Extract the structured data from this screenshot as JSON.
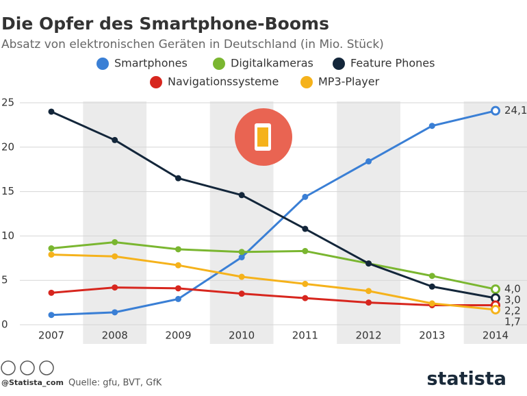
{
  "chart_data": {
    "type": "line",
    "title": "Die Opfer des Smartphone-Booms",
    "subtitle": "Absatz von elektronischen Geräten in Deutschland (in Mio. Stück)",
    "categories": [
      "2007",
      "2008",
      "2009",
      "2010",
      "2011",
      "2012",
      "2013",
      "2014"
    ],
    "series": [
      {
        "name": "Smartphones",
        "color": "#3a7fd5",
        "values": [
          1.1,
          1.4,
          2.9,
          7.6,
          14.4,
          18.4,
          22.4,
          24.1
        ],
        "value_labels": [
          null,
          null,
          null,
          null,
          null,
          null,
          null,
          "24,1"
        ]
      },
      {
        "name": "Digitalkameras",
        "color": "#7ab630",
        "values": [
          8.6,
          9.3,
          8.5,
          8.2,
          8.3,
          6.9,
          5.5,
          4.0
        ],
        "value_labels": [
          null,
          null,
          null,
          null,
          null,
          null,
          null,
          "4,0"
        ]
      },
      {
        "name": "Feature Phones",
        "color": "#13263a",
        "values": [
          24.0,
          20.8,
          16.5,
          14.6,
          10.8,
          6.9,
          4.3,
          3.0
        ],
        "value_labels": [
          null,
          null,
          null,
          null,
          null,
          null,
          null,
          "3,0"
        ]
      },
      {
        "name": "Navigationssysteme",
        "color": "#d7261e",
        "values": [
          3.6,
          4.2,
          4.1,
          3.5,
          3.0,
          2.5,
          2.2,
          2.2
        ],
        "value_labels": [
          null,
          null,
          null,
          null,
          null,
          null,
          null,
          "2,2"
        ]
      },
      {
        "name": "MP3-Player",
        "color": "#f5b21b",
        "values": [
          7.9,
          7.7,
          6.7,
          5.4,
          4.6,
          3.8,
          2.4,
          1.7
        ],
        "value_labels": [
          null,
          null,
          null,
          null,
          null,
          null,
          null,
          "1,7"
        ]
      }
    ],
    "ylim": [
      0,
      25
    ],
    "yticks": [
      0,
      5,
      10,
      15,
      20,
      25
    ],
    "grid": true
  },
  "footer": {
    "credit": "@Statista_com",
    "source": "Quelle: gfu, BVT, GfK",
    "brand": "statista"
  }
}
